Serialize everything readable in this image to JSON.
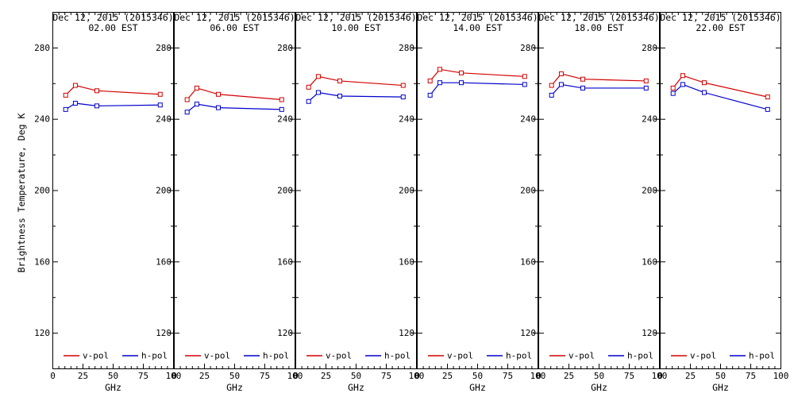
{
  "figure": {
    "y_axis_label": "Brightness Temperature, Deg K",
    "x_axis_label": "GHz"
  },
  "chart_data": {
    "type": "line",
    "title": "Dec 12, 2015 (2015346)",
    "xlabel": "GHz",
    "ylabel": "Brightness Temperature, Deg K",
    "xlim": [
      0,
      100
    ],
    "ylim": [
      100,
      300
    ],
    "x_ticks": [
      0,
      25,
      50,
      75,
      100
    ],
    "y_ticks": [
      120,
      160,
      200,
      240,
      280
    ],
    "x_minor_step": 5,
    "y_minor_step": 20,
    "grid": false,
    "legend_position": "bottom-inside",
    "legend": [
      "v-pol",
      "h-pol"
    ],
    "colors": {
      "v_pol": "#d40000",
      "h_pol": "#0000cc",
      "axis": "#000000"
    },
    "x": [
      10.65,
      18.7,
      36.5,
      89
    ],
    "panels": [
      {
        "title": "Dec 12, 2015 (2015346)",
        "subtitle": "02.00 EST",
        "series": [
          {
            "name": "v-pol",
            "values": [
              253.5,
              259.0,
              256.0,
              254.0
            ]
          },
          {
            "name": "h-pol",
            "values": [
              245.5,
              249.0,
              247.5,
              248.0
            ]
          }
        ]
      },
      {
        "title": "Dec 12, 2015 (2015346)",
        "subtitle": "06.00 EST",
        "series": [
          {
            "name": "v-pol",
            "values": [
              251.0,
              257.5,
              254.0,
              251.0
            ]
          },
          {
            "name": "h-pol",
            "values": [
              244.0,
              248.5,
              246.5,
              245.5
            ]
          }
        ]
      },
      {
        "title": "Dec 12, 2015 (2015346)",
        "subtitle": "10.00 EST",
        "series": [
          {
            "name": "v-pol",
            "values": [
              258.0,
              264.0,
              261.5,
              259.0
            ]
          },
          {
            "name": "h-pol",
            "values": [
              250.0,
              255.0,
              253.0,
              252.5
            ]
          }
        ]
      },
      {
        "title": "Dec 12, 2015 (2015346)",
        "subtitle": "14.00 EST",
        "series": [
          {
            "name": "v-pol",
            "values": [
              261.5,
              268.0,
              266.0,
              264.0
            ]
          },
          {
            "name": "h-pol",
            "values": [
              253.5,
              260.5,
              260.5,
              259.5
            ]
          }
        ]
      },
      {
        "title": "Dec 12, 2015 (2015346)",
        "subtitle": "18.00 EST",
        "series": [
          {
            "name": "v-pol",
            "values": [
              259.0,
              265.5,
              262.5,
              261.5
            ]
          },
          {
            "name": "h-pol",
            "values": [
              253.5,
              259.5,
              257.5,
              257.5
            ]
          }
        ]
      },
      {
        "title": "Dec 12, 2015 (2015346)",
        "subtitle": "22.00 EST",
        "series": [
          {
            "name": "v-pol",
            "values": [
              257.5,
              264.5,
              260.5,
              252.5
            ]
          },
          {
            "name": "h-pol",
            "values": [
              254.5,
              259.5,
              255.0,
              245.5
            ]
          }
        ]
      }
    ]
  }
}
